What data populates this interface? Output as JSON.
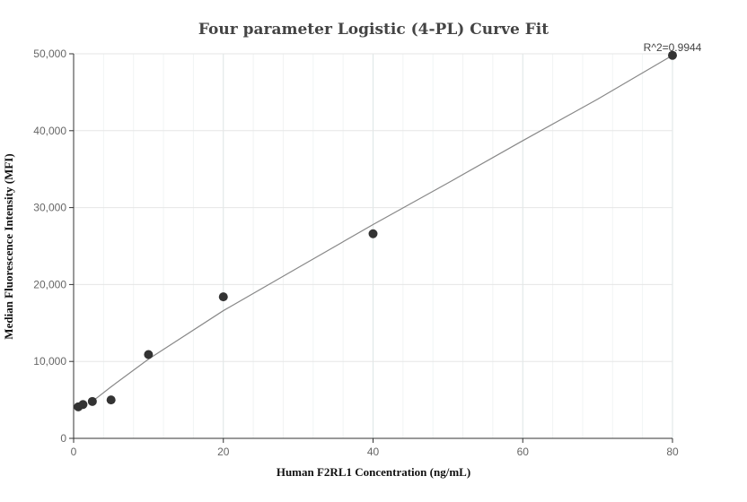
{
  "chart_data": {
    "type": "scatter",
    "title": "Four parameter Logistic (4-PL) Curve Fit",
    "xlabel": "Human F2RL1 Concentration (ng/mL)",
    "ylabel": "Median Fluorescence Intensity (MFI)",
    "xlim": [
      0,
      80
    ],
    "ylim": [
      0,
      50000
    ],
    "x_ticks": [
      0,
      20,
      40,
      60,
      80
    ],
    "x_tick_labels": [
      "0",
      "20",
      "40",
      "60",
      "80"
    ],
    "y_ticks": [
      0,
      10000,
      20000,
      30000,
      40000,
      50000
    ],
    "y_tick_labels": [
      "0",
      "10,000",
      "20,000",
      "30,000",
      "40,000",
      "50,000"
    ],
    "grid": true,
    "series": [
      {
        "type": "scatter",
        "x": [
          0.625,
          1.25,
          2.5,
          5,
          10,
          20,
          40,
          80
        ],
        "y": [
          4100,
          4400,
          4800,
          5000,
          10900,
          18400,
          26600,
          49800
        ]
      },
      {
        "type": "line",
        "x": [
          2.5,
          5,
          10,
          20,
          30,
          40,
          50,
          60,
          70,
          80
        ],
        "y": [
          4800,
          6700,
          10300,
          16600,
          22200,
          27800,
          33200,
          38700,
          44100,
          49800
        ]
      }
    ],
    "annotations": [
      {
        "text": "R^2=0.9944",
        "x": 80,
        "y": 49800
      }
    ],
    "colors": {
      "points": "#333333",
      "curve": "#888888",
      "grid": "#e6e6e6",
      "axis": "#333333"
    }
  }
}
